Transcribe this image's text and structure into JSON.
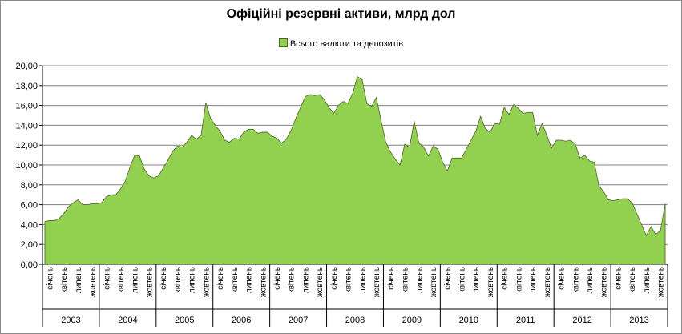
{
  "chart_data": {
    "type": "area",
    "title": "Офіційні резервні активи, млрд дол",
    "series": [
      {
        "name": "Всього валюти та депозитів",
        "values": [
          4.3,
          4.4,
          4.4,
          4.6,
          5.1,
          5.8,
          6.2,
          6.5,
          6.0,
          6.0,
          6.1,
          6.1,
          6.2,
          6.8,
          7.0,
          7.0,
          7.6,
          8.4,
          9.8,
          11.0,
          10.9,
          9.6,
          8.9,
          8.7,
          8.9,
          9.7,
          10.5,
          11.4,
          11.9,
          11.8,
          12.3,
          13.0,
          12.6,
          13.0,
          16.3,
          14.7,
          14.0,
          13.4,
          12.5,
          12.3,
          12.7,
          12.6,
          13.3,
          13.6,
          13.6,
          13.2,
          13.3,
          13.3,
          12.9,
          12.7,
          12.2,
          12.6,
          13.5,
          14.7,
          15.8,
          16.9,
          17.1,
          17.0,
          17.1,
          16.6,
          15.8,
          15.2,
          16.0,
          16.4,
          16.2,
          17.2,
          18.9,
          18.6,
          16.2,
          15.9,
          16.8,
          14.5,
          12.3,
          11.3,
          10.6,
          10.0,
          12.1,
          11.8,
          14.4,
          12.2,
          11.8,
          10.9,
          11.9,
          11.6,
          10.3,
          9.4,
          10.7,
          10.7,
          10.7,
          11.6,
          12.5,
          13.4,
          14.9,
          13.7,
          13.3,
          14.2,
          14.1,
          15.8,
          15.1,
          16.1,
          15.7,
          15.2,
          15.3,
          15.3,
          13.0,
          14.2,
          13.0,
          11.7,
          12.5,
          12.5,
          12.4,
          12.5,
          12.1,
          10.7,
          11.0,
          10.4,
          10.3,
          7.9,
          7.3,
          6.5,
          6.4,
          6.5,
          6.6,
          6.6,
          6.2,
          5.1,
          4.0,
          2.9,
          3.8,
          3.0,
          3.4,
          6.1
        ]
      }
    ],
    "months": [
      "січень",
      "квітень",
      "липень",
      "жовтень"
    ],
    "years": [
      "2003",
      "2004",
      "2005",
      "2006",
      "2007",
      "2008",
      "2009",
      "2010",
      "2011",
      "2012",
      "2013"
    ],
    "ylim": [
      0,
      20
    ],
    "yticks": [
      "0,00",
      "2,00",
      "4,00",
      "6,00",
      "8,00",
      "10,00",
      "12,00",
      "14,00",
      "16,00",
      "18,00",
      "20,00"
    ],
    "grid": true,
    "legend_position": "top",
    "colors": {
      "fill": "#92d050",
      "stroke": "#4f6228",
      "grid": "#808080"
    }
  }
}
